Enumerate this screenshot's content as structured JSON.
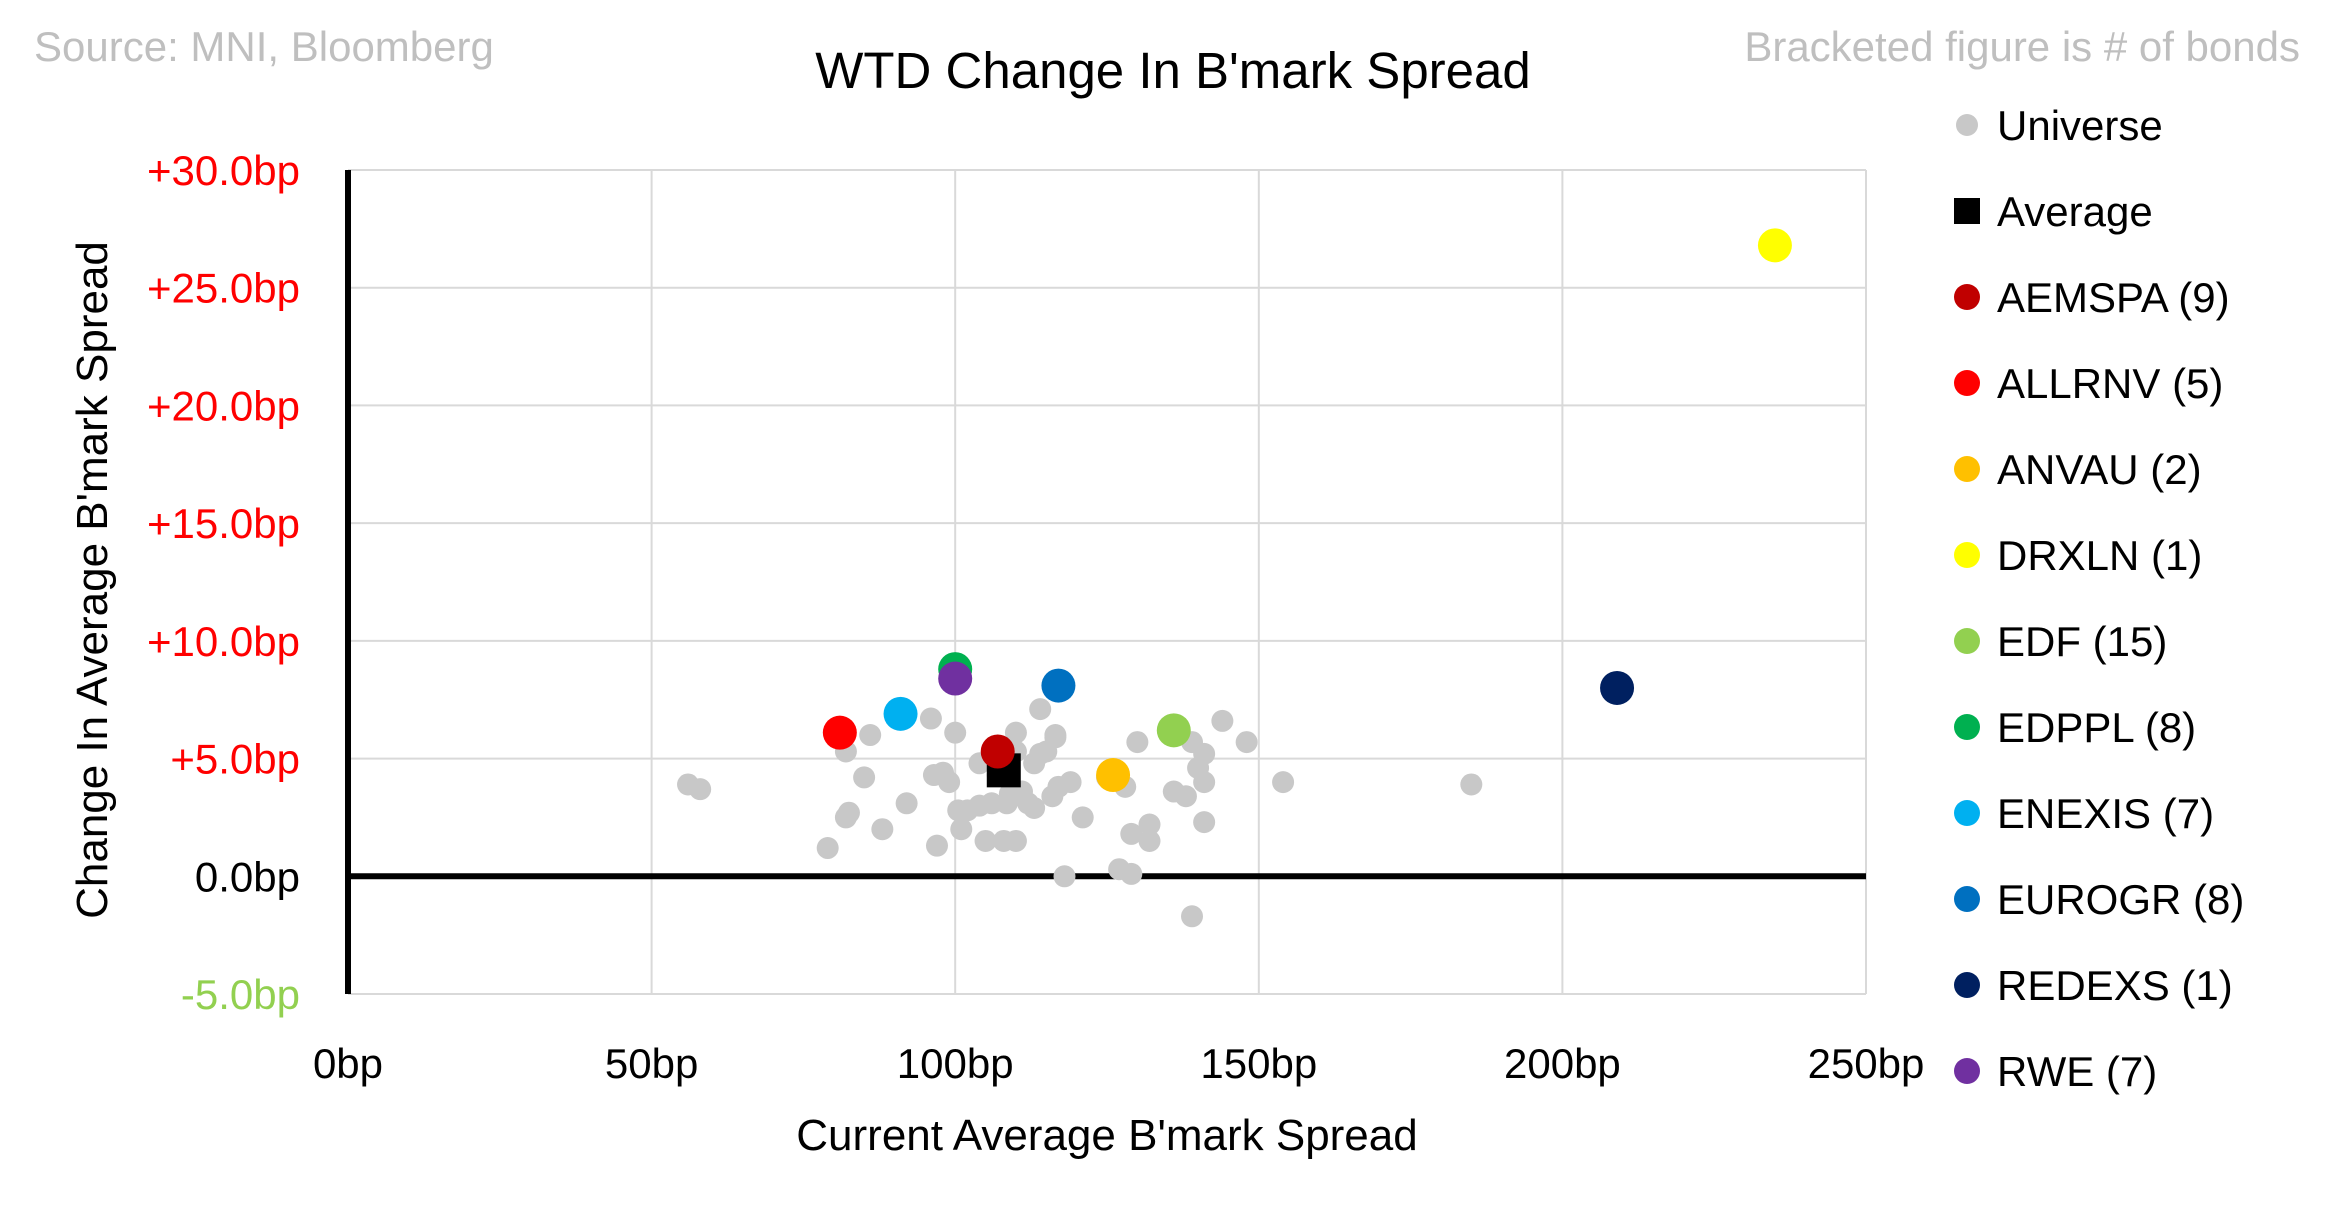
{
  "chart_data": {
    "type": "scatter",
    "title": "WTD Change In B'mark Spread",
    "source_note": "Source: MNI, Bloomberg",
    "bond_count_note": "Bracketed figure is # of bonds",
    "xlabel": "Current Average B'mark Spread",
    "ylabel": "Change In Average B'mark Spread",
    "xlim": [
      0,
      250
    ],
    "ylim": [
      -5,
      30
    ],
    "x_ticks": [
      0,
      50,
      100,
      150,
      200,
      250
    ],
    "y_ticks": [
      -5,
      0,
      5,
      10,
      15,
      20,
      25,
      30
    ],
    "x_tick_labels": [
      "0bp",
      "50bp",
      "100bp",
      "150bp",
      "200bp",
      "250bp"
    ],
    "y_tick_labels": [
      "-5.0bp",
      "0.0bp",
      "+5.0bp",
      "+10.0bp",
      "+15.0bp",
      "+20.0bp",
      "+25.0bp",
      "+30.0bp"
    ],
    "y_tick_colors": [
      "#92D050",
      "#000000",
      "#FF0000",
      "#FF0000",
      "#FF0000",
      "#FF0000",
      "#FF0000",
      "#FF0000"
    ],
    "gridlines": true,
    "legend_position": "right",
    "universe": {
      "name": "Universe",
      "color": "#C8C8C8",
      "points": [
        [
          56,
          3.9
        ],
        [
          58,
          3.7
        ],
        [
          79,
          1.2
        ],
        [
          82,
          2.5
        ],
        [
          82.5,
          2.7
        ],
        [
          82,
          5.3
        ],
        [
          85,
          4.2
        ],
        [
          86,
          6.0
        ],
        [
          88,
          2.0
        ],
        [
          92,
          3.1
        ],
        [
          96,
          6.7
        ],
        [
          97,
          1.3
        ],
        [
          96.5,
          4.3
        ],
        [
          98,
          4.4
        ],
        [
          99,
          4.0
        ],
        [
          100,
          6.1
        ],
        [
          100.5,
          2.8
        ],
        [
          101,
          2.0
        ],
        [
          102,
          2.8
        ],
        [
          104,
          3.0
        ],
        [
          104,
          4.8
        ],
        [
          105,
          1.5
        ],
        [
          106,
          3.1
        ],
        [
          108,
          1.5
        ],
        [
          107,
          4.3
        ],
        [
          108.5,
          3.1
        ],
        [
          109,
          3.5
        ],
        [
          110,
          1.5
        ],
        [
          110,
          5.3
        ],
        [
          110,
          6.1
        ],
        [
          111,
          3.6
        ],
        [
          112,
          3.1
        ],
        [
          113,
          2.9
        ],
        [
          113,
          4.8
        ],
        [
          114,
          7.1
        ],
        [
          114,
          5.2
        ],
        [
          115,
          5.3
        ],
        [
          116,
          3.4
        ],
        [
          116.5,
          6.0
        ],
        [
          116.5,
          5.9
        ],
        [
          117,
          3.8
        ],
        [
          118,
          0.0
        ],
        [
          119,
          4.0
        ],
        [
          121,
          2.5
        ],
        [
          125,
          4.2
        ],
        [
          127,
          0.3
        ],
        [
          128,
          3.8
        ],
        [
          129,
          1.8
        ],
        [
          129,
          0.1
        ],
        [
          130,
          5.7
        ],
        [
          132,
          1.5
        ],
        [
          132,
          2.2
        ],
        [
          136,
          3.6
        ],
        [
          138,
          3.4
        ],
        [
          139,
          5.7
        ],
        [
          140,
          4.6
        ],
        [
          141,
          4.0
        ],
        [
          141,
          5.2
        ],
        [
          141,
          2.3
        ],
        [
          144,
          6.6
        ],
        [
          148,
          5.7
        ],
        [
          139,
          -1.7
        ],
        [
          154,
          4.0
        ],
        [
          185,
          3.9
        ]
      ]
    },
    "average": {
      "name": "Average",
      "x": 108,
      "y": 4.5,
      "color": "#000000"
    },
    "issuers": [
      {
        "name": "AEMSPA",
        "bonds": "(9)",
        "x": 107,
        "y": 5.3,
        "color": "#C00000"
      },
      {
        "name": "ALLRNV",
        "bonds": "(5)",
        "x": 81,
        "y": 6.1,
        "color": "#FF0000"
      },
      {
        "name": "ANVAU",
        "bonds": "(2)",
        "x": 126,
        "y": 4.3,
        "color": "#FFC000"
      },
      {
        "name": "DRXLN",
        "bonds": "(1)",
        "x": 235,
        "y": 26.8,
        "color": "#FFFF00"
      },
      {
        "name": "EDF",
        "bonds": "(15)",
        "x": 136,
        "y": 6.2,
        "color": "#92D050"
      },
      {
        "name": "EDPPL",
        "bonds": "(8)",
        "x": 100,
        "y": 8.8,
        "color": "#00B050"
      },
      {
        "name": "ENEXIS",
        "bonds": "(7)",
        "x": 91,
        "y": 6.9,
        "color": "#00B0F0"
      },
      {
        "name": "EUROGR",
        "bonds": "(8)",
        "x": 117,
        "y": 8.1,
        "color": "#0070C0"
      },
      {
        "name": "REDEXS",
        "bonds": "(1)",
        "x": 209,
        "y": 8.0,
        "color": "#002060"
      },
      {
        "name": "RWE",
        "bonds": "(7)",
        "x": 100,
        "y": 8.4,
        "color": "#7030A0"
      }
    ]
  }
}
